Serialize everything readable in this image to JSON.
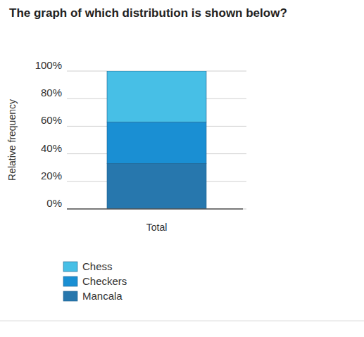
{
  "chart_data": {
    "type": "bar",
    "title": "The graph of which distribution is shown below?",
    "y_label": "Relative frequency",
    "categories": [
      "Total"
    ],
    "stacked": true,
    "grid": true,
    "legend": "bottom-left",
    "ylim": [
      0,
      100
    ],
    "yticks": [
      {
        "value": 0,
        "label": "0%"
      },
      {
        "value": 20,
        "label": "20%"
      },
      {
        "value": 40,
        "label": "40%"
      },
      {
        "value": 60,
        "label": "60%"
      },
      {
        "value": 80,
        "label": "80%"
      },
      {
        "value": 100,
        "label": "100%"
      }
    ],
    "series": [
      {
        "name": "Mancala",
        "color": "#2777ad",
        "values": [
          33
        ]
      },
      {
        "name": "Checkers",
        "color": "#1a8fd3",
        "values": [
          30
        ]
      },
      {
        "name": "Chess",
        "color": "#47bfe6",
        "values": [
          37
        ]
      }
    ]
  }
}
